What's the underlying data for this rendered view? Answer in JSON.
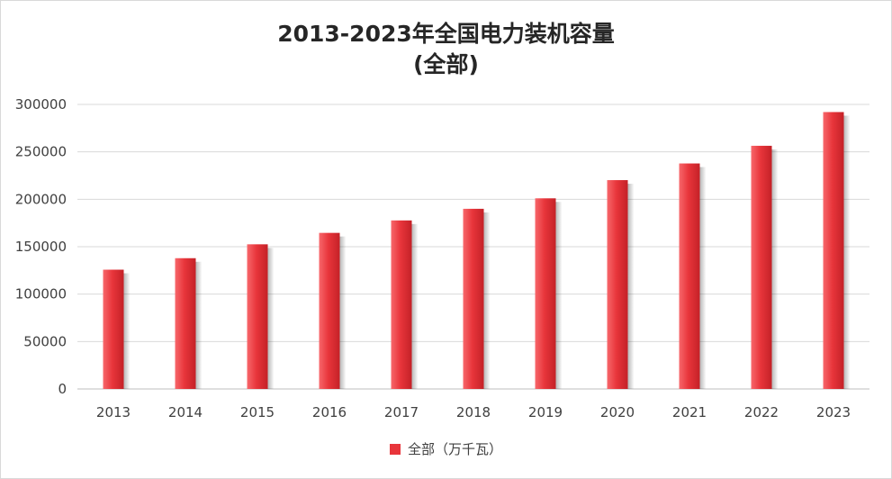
{
  "chart_data": {
    "type": "bar",
    "title_line1": "2013-2023年全国电力装机容量",
    "title_line2": "(全部)",
    "categories": [
      "2013",
      "2014",
      "2015",
      "2016",
      "2017",
      "2018",
      "2019",
      "2020",
      "2021",
      "2022",
      "2023"
    ],
    "series": [
      {
        "name": "全部（万千瓦）",
        "values": [
          125768,
          137887,
          152527,
          164575,
          177708,
          189967,
          201006,
          220204,
          237777,
          256405,
          291965
        ]
      }
    ],
    "ylim": [
      0,
      300000
    ],
    "yticks": [
      0,
      50000,
      100000,
      150000,
      200000,
      250000,
      300000
    ],
    "ytick_labels": [
      "0",
      "50000",
      "100000",
      "150000",
      "200000",
      "250000",
      "300000"
    ],
    "grid": true,
    "legend_position": "bottom",
    "bar_color": "#e8353b"
  }
}
